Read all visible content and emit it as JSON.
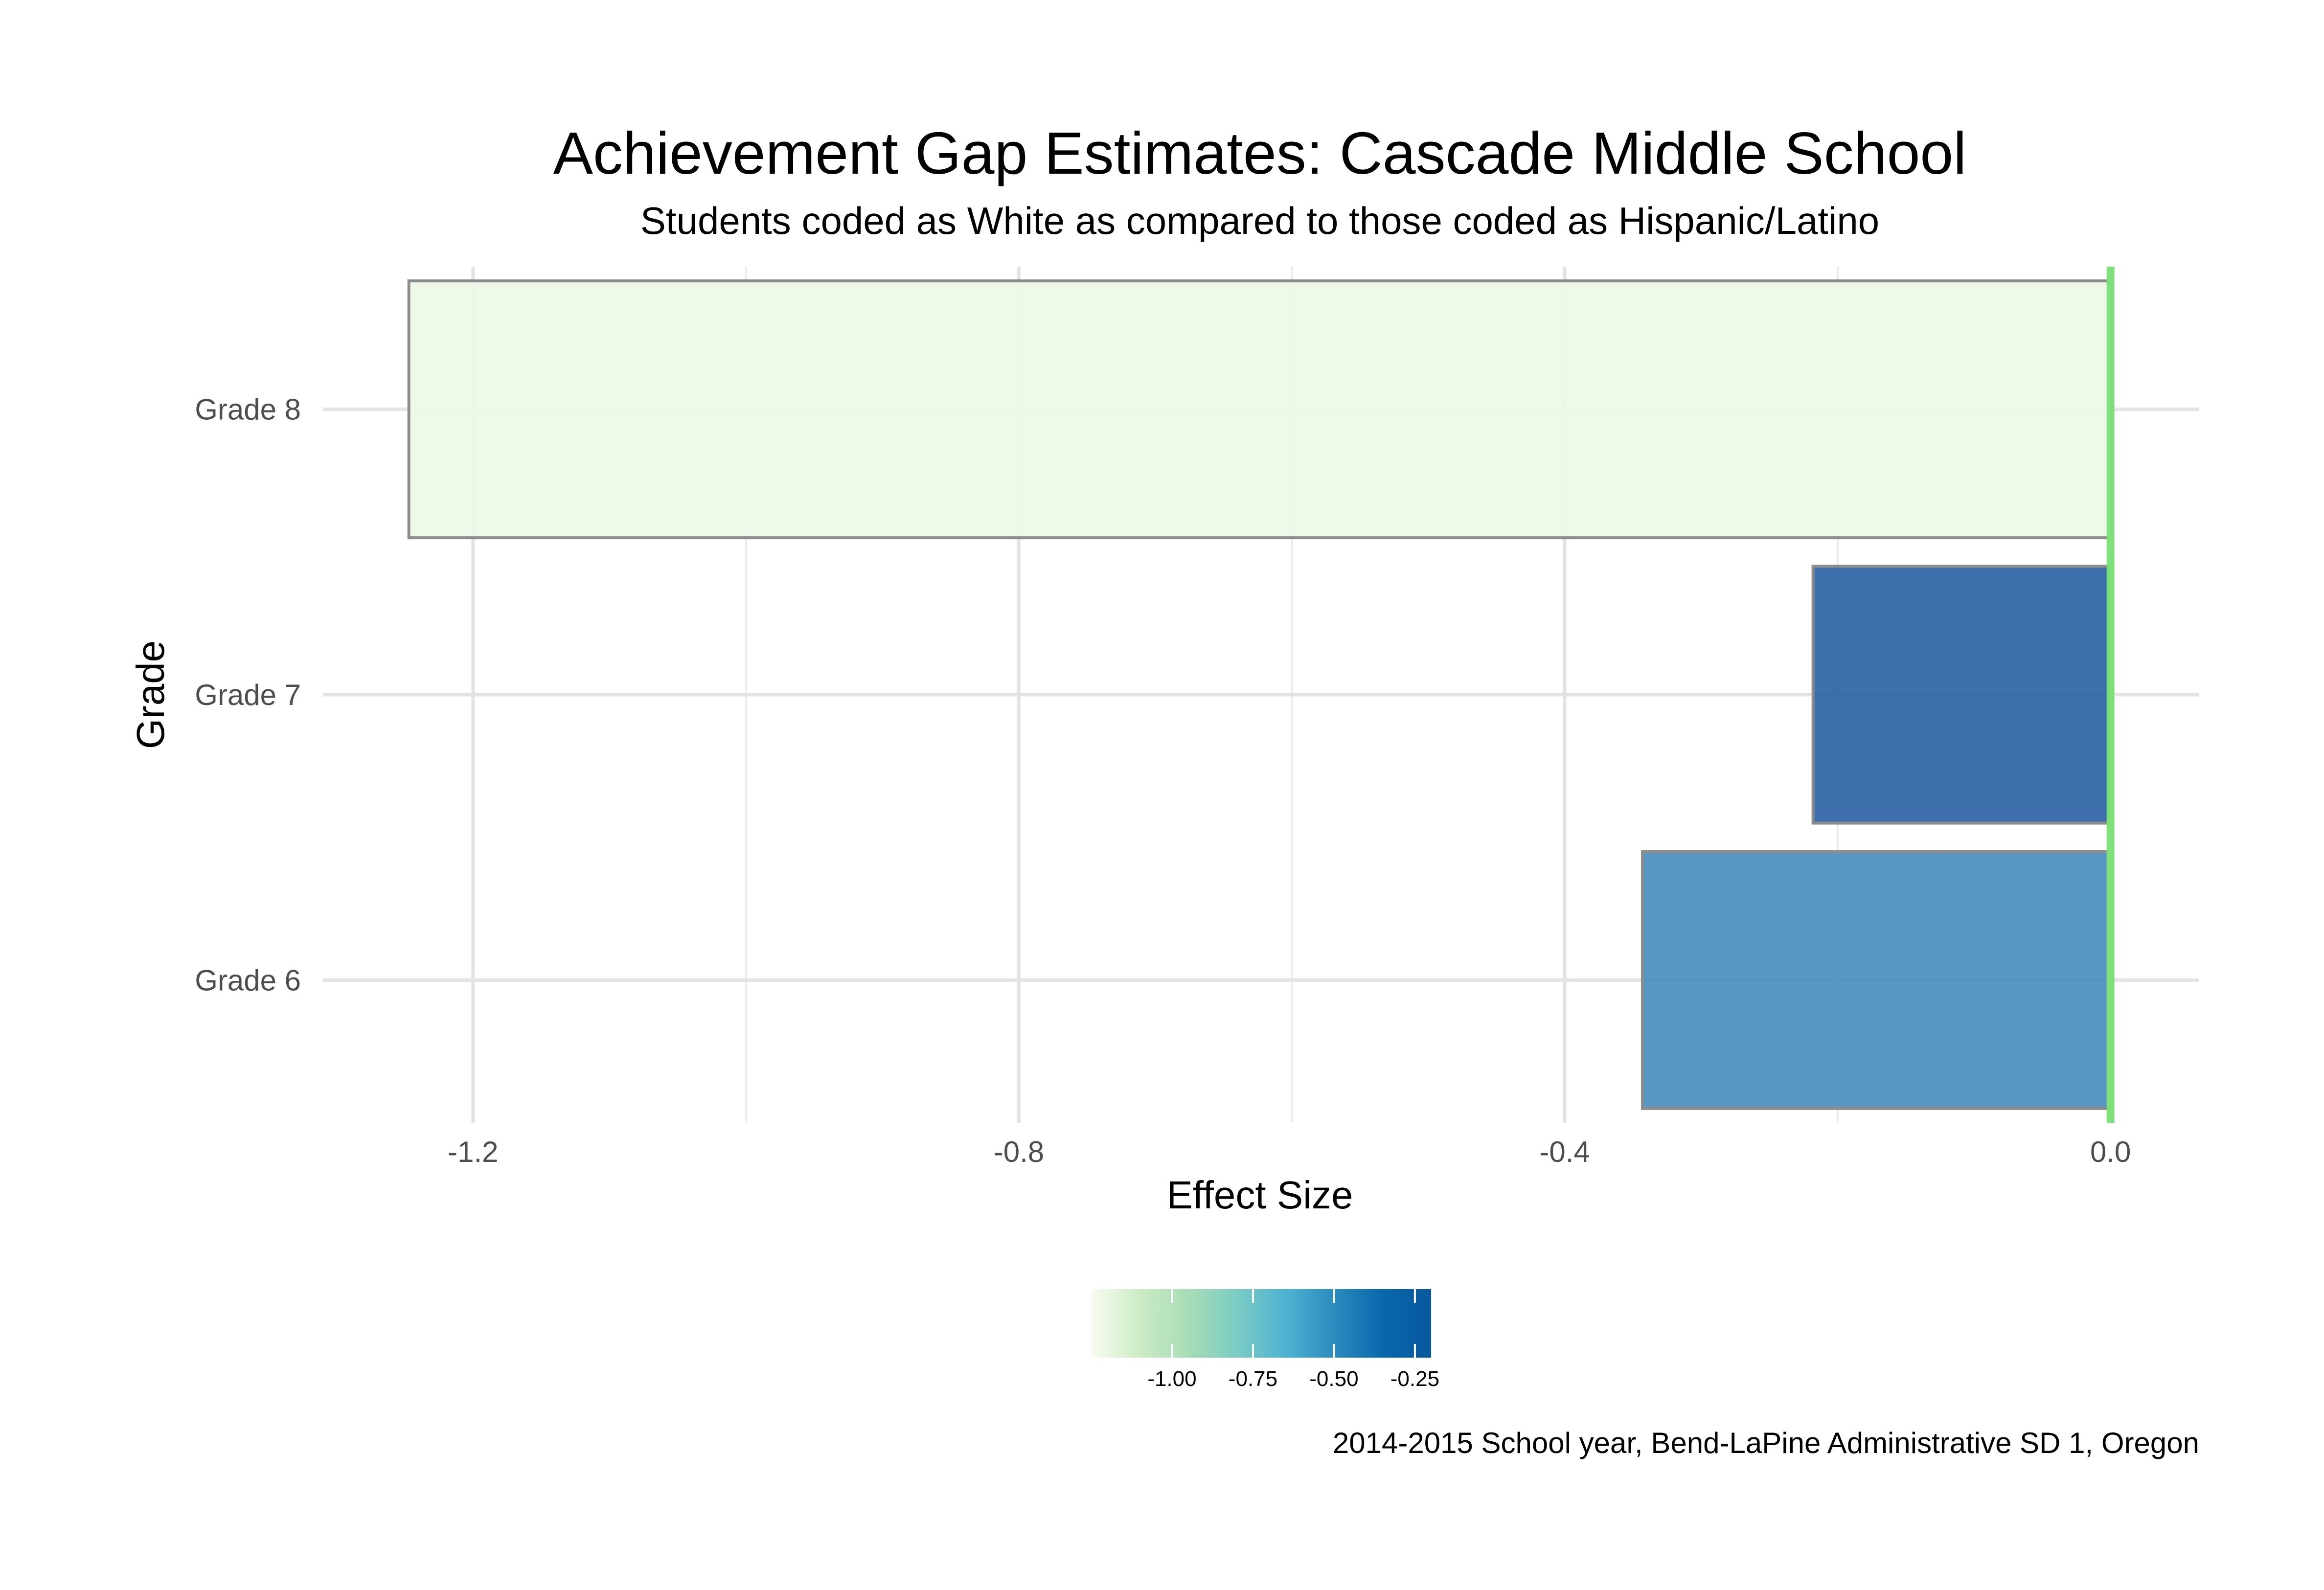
{
  "chart_data": {
    "type": "bar",
    "orientation": "horizontal",
    "title": "Achievement Gap Estimates: Cascade Middle School",
    "subtitle": "Students coded as White as compared to those coded as Hispanic/Latino",
    "xlabel": "Effect Size",
    "ylabel": "Grade",
    "caption": "2014-2015 School year, Bend-LaPine Administrative SD 1, Oregon",
    "categories": [
      "Grade 6",
      "Grade 7",
      "Grade 8"
    ],
    "values": [
      -0.343,
      -0.218,
      -1.247
    ],
    "fill_colors": [
      "#4c8fbf",
      "#2d63a6",
      "#eef8e8"
    ],
    "xlim": [
      -1.31,
      0.065
    ],
    "x_ticks": [
      -1.2,
      -0.8,
      -0.4,
      0.0
    ],
    "x_tick_labels": [
      "-1.2",
      "-0.8",
      "-0.4",
      "0.0"
    ],
    "reference_line": {
      "x": 0,
      "color": "#7ee07a"
    },
    "grid": true,
    "legend": {
      "type": "colorbar",
      "position": "bottom",
      "range": [
        -1.25,
        -0.2
      ],
      "ticks": [
        -1.0,
        -0.75,
        -0.5,
        -0.25
      ],
      "tick_labels": [
        "-1.00",
        "-0.75",
        "-0.50",
        "-0.25"
      ],
      "colors": [
        "#f7fcf0",
        "#ccebc5",
        "#a8ddb5",
        "#7bccc4",
        "#4eb3d3",
        "#2b8cbe",
        "#0868ac",
        "#08589e"
      ]
    }
  }
}
